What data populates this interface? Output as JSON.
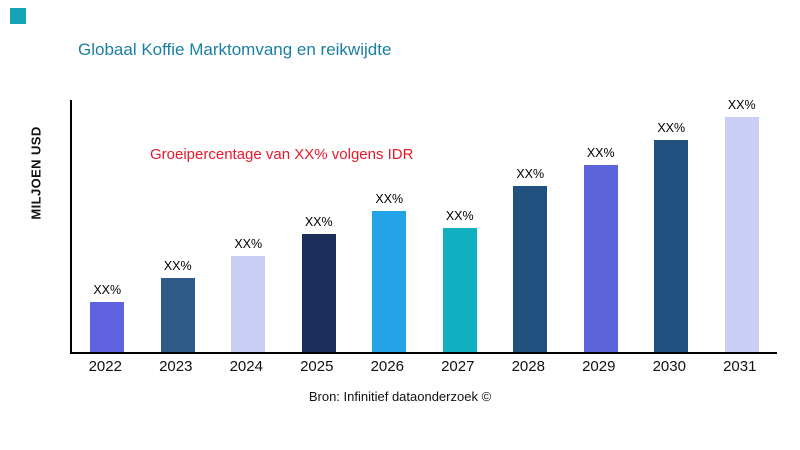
{
  "colors": {
    "title": "#1B7FA3",
    "annotation": "#E8192C",
    "corner_square": "#12A3B6",
    "axis": "#000000"
  },
  "header": {
    "title": "Globaal Koffie Marktomvang en reikwijdte"
  },
  "annotation": {
    "text": "Groeipercentage van XX% volgens IDR"
  },
  "footer": {
    "source": "Bron: Infinitief dataonderzoek ©"
  },
  "chart_data": {
    "type": "bar",
    "title": "Globaal Koffie Marktomvang en reikwijdte",
    "xlabel": "",
    "ylabel": "MILJOEN USD",
    "categories": [
      "2022",
      "2023",
      "2024",
      "2025",
      "2026",
      "2027",
      "2028",
      "2029",
      "2030",
      "2031"
    ],
    "values": [
      50,
      73,
      95,
      117,
      140,
      123,
      165,
      186,
      210,
      233
    ],
    "values_note": "bars labeled XX% — numeric values estimated from relative bar heights",
    "bar_labels": [
      "XX%",
      "XX%",
      "XX%",
      "XX%",
      "XX%",
      "XX%",
      "XX%",
      "XX%",
      "XX%",
      "XX%"
    ],
    "bar_colors": [
      "#6063DF",
      "#2E5A87",
      "#C9CEF4",
      "#1B2D5B",
      "#23A3E8",
      "#10AEBE",
      "#21517E",
      "#5A64D8",
      "#21517E",
      "#C9CEF4"
    ],
    "ylim": [
      0,
      250
    ],
    "grid": false,
    "legend": "none",
    "annotation": "Groeipercentage van XX% volgens IDR"
  }
}
